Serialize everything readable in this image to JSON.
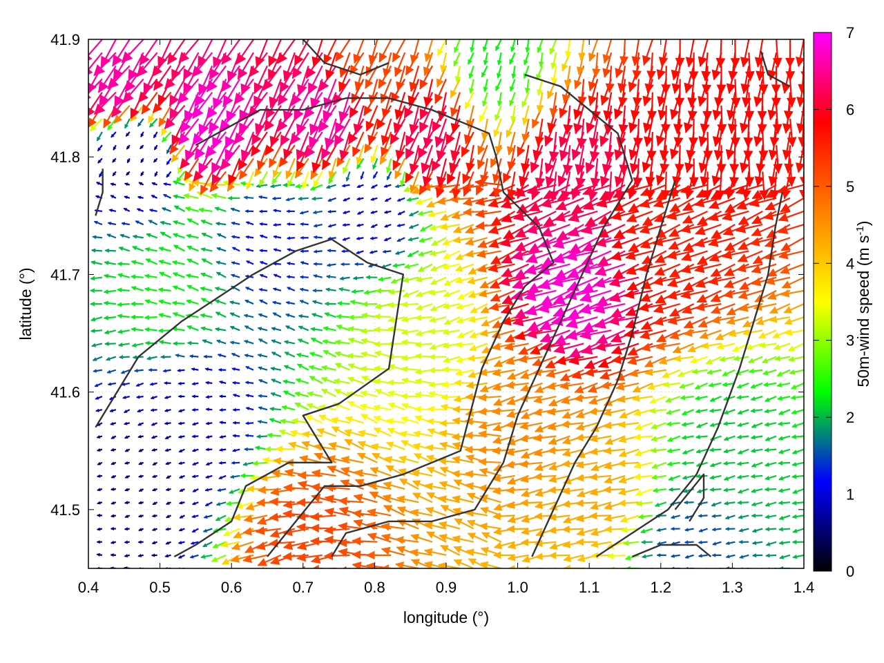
{
  "chart_data": {
    "type": "vector-field",
    "xlabel": "longitude (°)",
    "ylabel": "latitude (°)",
    "colorbar": {
      "label_main": "50m-wind speed (m s",
      "label_sup": "-1",
      "label_end": ")",
      "range": [
        0,
        7
      ],
      "ticks": [
        "0",
        "1",
        "2",
        "3",
        "4",
        "5",
        "6",
        "7"
      ],
      "colors": [
        "#000000",
        "#0000ff",
        "#00ff00",
        "#ffff00",
        "#ff8000",
        "#ff0000",
        "#ff00ff"
      ]
    },
    "xlim": [
      0.4,
      1.4
    ],
    "ylim": [
      41.45,
      41.9
    ],
    "x_ticks": [
      "0.4",
      "0.5",
      "0.6",
      "0.7",
      "0.8",
      "0.9",
      "1.0",
      "1.1",
      "1.2",
      "1.3",
      "1.4"
    ],
    "y_ticks": [
      "41.5",
      "41.6",
      "41.7",
      "41.8",
      "41.9"
    ],
    "speed_regions": [
      {
        "lon": 1.1,
        "lat": 41.69,
        "speed": 6.8
      },
      {
        "lon": 1.08,
        "lat": 41.8,
        "speed": 6.2
      },
      {
        "lon": 1.28,
        "lat": 41.83,
        "speed": 5.8
      },
      {
        "lon": 1.23,
        "lat": 41.73,
        "speed": 5.6
      },
      {
        "lon": 0.58,
        "lat": 41.84,
        "speed": 6.8
      },
      {
        "lon": 0.74,
        "lat": 41.85,
        "speed": 6.6
      },
      {
        "lon": 0.88,
        "lat": 41.83,
        "speed": 6.2
      },
      {
        "lon": 0.45,
        "lat": 41.88,
        "speed": 6.6
      },
      {
        "lon": 0.8,
        "lat": 41.89,
        "speed": 5.2
      },
      {
        "lon": 1.03,
        "lat": 41.58,
        "speed": 4.6
      },
      {
        "lon": 1.12,
        "lat": 41.52,
        "speed": 4.3
      },
      {
        "lon": 0.88,
        "lat": 41.65,
        "speed": 3.3
      },
      {
        "lon": 0.72,
        "lat": 41.47,
        "speed": 5.2
      },
      {
        "lon": 0.55,
        "lat": 41.58,
        "speed": 0.9
      },
      {
        "lon": 0.47,
        "lat": 41.52,
        "speed": 0.6
      },
      {
        "lon": 0.66,
        "lat": 41.73,
        "speed": 1.2
      },
      {
        "lon": 0.47,
        "lat": 41.8,
        "speed": 0.6
      },
      {
        "lon": 0.8,
        "lat": 41.76,
        "speed": 1.0
      },
      {
        "lon": 0.52,
        "lat": 41.68,
        "speed": 2.3
      },
      {
        "lon": 1.3,
        "lat": 41.55,
        "speed": 2.1
      },
      {
        "lon": 1.25,
        "lat": 41.47,
        "speed": 1.5
      },
      {
        "lon": 0.97,
        "lat": 41.89,
        "speed": 2.3
      }
    ],
    "coastlines": [
      [
        [
          0.41,
          41.57
        ],
        [
          0.44,
          41.6
        ],
        [
          0.47,
          41.63
        ],
        [
          0.53,
          41.66
        ],
        [
          0.58,
          41.68
        ],
        [
          0.63,
          41.7
        ],
        [
          0.69,
          41.72
        ],
        [
          0.74,
          41.73
        ],
        [
          0.79,
          41.71
        ],
        [
          0.84,
          41.7
        ],
        [
          0.82,
          41.62
        ],
        [
          0.75,
          41.59
        ],
        [
          0.7,
          41.58
        ],
        [
          0.74,
          41.54
        ],
        [
          0.68,
          41.54
        ],
        [
          0.62,
          41.52
        ],
        [
          0.6,
          41.49
        ],
        [
          0.55,
          41.47
        ],
        [
          0.52,
          41.46
        ]
      ],
      [
        [
          0.65,
          41.46
        ],
        [
          0.69,
          41.49
        ],
        [
          0.73,
          41.52
        ],
        [
          0.78,
          41.52
        ],
        [
          0.84,
          41.53
        ],
        [
          0.92,
          41.55
        ],
        [
          0.95,
          41.62
        ],
        [
          0.98,
          41.66
        ],
        [
          1.01,
          41.69
        ],
        [
          1.05,
          41.71
        ],
        [
          1.03,
          41.74
        ],
        [
          0.98,
          41.77
        ],
        [
          0.97,
          41.8
        ],
        [
          0.96,
          41.82
        ],
        [
          0.92,
          41.83
        ],
        [
          0.88,
          41.84
        ],
        [
          0.82,
          41.85
        ],
        [
          0.76,
          41.85
        ],
        [
          0.7,
          41.84
        ],
        [
          0.64,
          41.84
        ],
        [
          0.58,
          41.82
        ],
        [
          0.55,
          41.81
        ]
      ],
      [
        [
          0.74,
          41.46
        ],
        [
          0.76,
          41.48
        ],
        [
          0.82,
          41.49
        ],
        [
          0.88,
          41.49
        ],
        [
          0.94,
          41.5
        ],
        [
          0.98,
          41.54
        ],
        [
          1.0,
          41.58
        ],
        [
          1.03,
          41.62
        ],
        [
          1.06,
          41.66
        ],
        [
          1.09,
          41.7
        ],
        [
          1.12,
          41.74
        ],
        [
          1.16,
          41.78
        ],
        [
          1.14,
          41.82
        ],
        [
          1.1,
          41.84
        ],
        [
          1.06,
          41.86
        ],
        [
          1.01,
          41.87
        ]
      ],
      [
        [
          1.02,
          41.46
        ],
        [
          1.05,
          41.5
        ],
        [
          1.08,
          41.54
        ],
        [
          1.11,
          41.57
        ],
        [
          1.14,
          41.61
        ],
        [
          1.16,
          41.65
        ],
        [
          1.18,
          41.7
        ],
        [
          1.2,
          41.74
        ],
        [
          1.22,
          41.78
        ]
      ],
      [
        [
          1.11,
          41.46
        ],
        [
          1.16,
          41.48
        ],
        [
          1.21,
          41.5
        ],
        [
          1.25,
          41.53
        ],
        [
          1.28,
          41.57
        ],
        [
          1.31,
          41.62
        ],
        [
          1.33,
          41.66
        ],
        [
          1.35,
          41.7
        ],
        [
          1.36,
          41.74
        ],
        [
          1.37,
          41.77
        ]
      ],
      [
        [
          1.24,
          41.49
        ],
        [
          1.26,
          41.51
        ],
        [
          1.26,
          41.53
        ],
        [
          1.22,
          41.5
        ]
      ],
      [
        [
          1.16,
          41.46
        ],
        [
          1.2,
          41.47
        ],
        [
          1.25,
          41.47
        ],
        [
          1.27,
          41.46
        ]
      ],
      [
        [
          0.41,
          41.75
        ],
        [
          0.42,
          41.77
        ],
        [
          0.42,
          41.79
        ]
      ],
      [
        [
          0.7,
          41.9
        ],
        [
          0.73,
          41.88
        ],
        [
          0.78,
          41.87
        ],
        [
          0.82,
          41.88
        ]
      ],
      [
        [
          1.34,
          41.89
        ],
        [
          1.35,
          41.87
        ],
        [
          1.38,
          41.86
        ]
      ]
    ]
  }
}
